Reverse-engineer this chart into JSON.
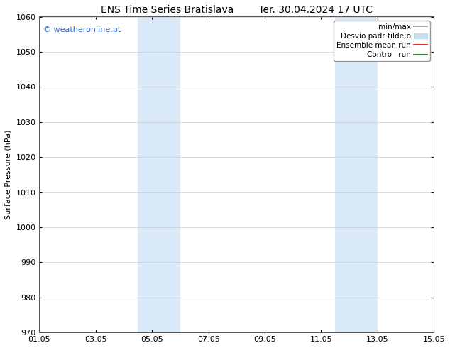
{
  "title_left": "ENS Time Series Bratislava",
  "title_right": "Ter. 30.04.2024 17 UTC",
  "ylabel": "Surface Pressure (hPa)",
  "ylim": [
    970,
    1060
  ],
  "yticks": [
    970,
    980,
    990,
    1000,
    1010,
    1020,
    1030,
    1040,
    1050,
    1060
  ],
  "xtick_labels": [
    "01.05",
    "03.05",
    "05.05",
    "07.05",
    "09.05",
    "11.05",
    "13.05",
    "15.05"
  ],
  "xtick_positions": [
    0,
    2,
    4,
    6,
    8,
    10,
    12,
    14
  ],
  "x_total_days": 14,
  "shaded_bands": [
    {
      "x_start": 3.5,
      "x_end": 5.0
    },
    {
      "x_start": 10.5,
      "x_end": 12.0
    }
  ],
  "shade_color": "#dbeaf8",
  "watermark_text": "© weatheronline.pt",
  "watermark_color": "#3366cc",
  "legend_entries": [
    {
      "label": "min/max",
      "color": "#999999",
      "lw": 1.2,
      "type": "line"
    },
    {
      "label": "Desvio padr tilde;o",
      "color": "#c8dff0",
      "lw": 8,
      "type": "patch"
    },
    {
      "label": "Ensemble mean run",
      "color": "#dd0000",
      "lw": 1.2,
      "type": "line"
    },
    {
      "label": "Controll run",
      "color": "#006600",
      "lw": 1.2,
      "type": "line"
    }
  ],
  "bg_color": "#ffffff",
  "grid_color": "#cccccc",
  "title_fontsize": 10,
  "watermark_fontsize": 8,
  "axis_label_fontsize": 8,
  "tick_fontsize": 8,
  "legend_fontsize": 7.5
}
